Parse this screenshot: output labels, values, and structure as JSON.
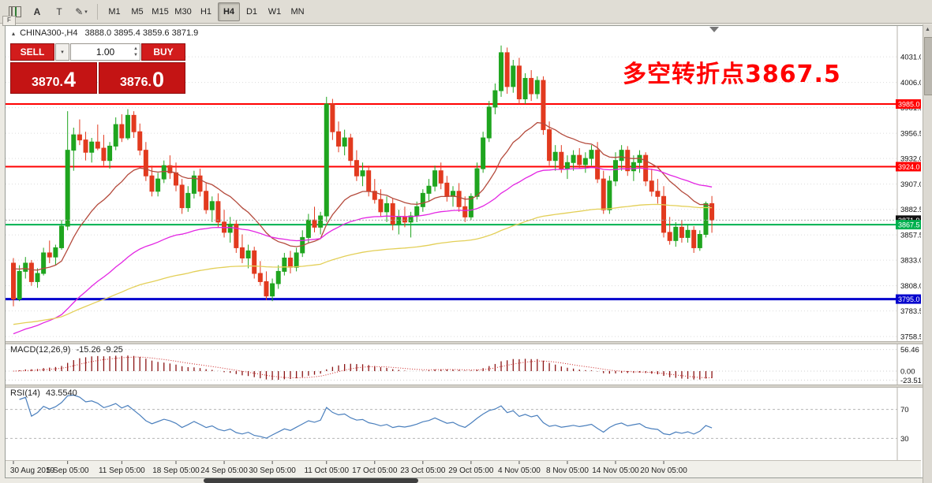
{
  "toolbar": {
    "cursor_label": "A",
    "text_label": "T",
    "pencil_glyph": "✎",
    "dropdown_glyph": "▾",
    "overflow_label": "F",
    "timeframes": [
      "M1",
      "M5",
      "M15",
      "M30",
      "H1",
      "H4",
      "D1",
      "W1",
      "MN"
    ],
    "active_timeframe": "H4"
  },
  "icons": {
    "collapse": "▴",
    "spin_up": "▲",
    "spin_down": "▼",
    "scroll_up": "▲"
  },
  "chart": {
    "header_symbol": "CHINA300-,H4",
    "header_ohlc": "3888.0 3895.4 3859.6 3871.9"
  },
  "trade_panel": {
    "sell_label": "SELL",
    "buy_label": "BUY",
    "volume": "1.00",
    "sell_price_main": "3870.",
    "sell_price_big": "4",
    "buy_price_main": "3876.",
    "buy_price_big": "0"
  },
  "annotation": {
    "text": "多空转折点3867.5",
    "color": "#ff0000"
  },
  "chart_data": {
    "type": "candlestick",
    "symbol": "CHINA300-",
    "timeframe": "H4",
    "ohlc_header": {
      "open": 3888.0,
      "high": 3895.4,
      "low": 3859.6,
      "close": 3871.9
    },
    "y_range": [
      3754,
      4061
    ],
    "y_ticks": [
      4031.0,
      4006.0,
      3981.5,
      3956.5,
      3932.0,
      3907.0,
      3882.5,
      3857.5,
      3833.0,
      3808.0,
      3783.5,
      3758.5
    ],
    "up_color": "#1fa51f",
    "down_color": "#e23a1f",
    "grid_color": "#dcdcdc",
    "hlines": [
      {
        "value": 3985.0,
        "color": "#ff0000",
        "width": 2,
        "label": "3985.0"
      },
      {
        "value": 3924.0,
        "color": "#ff0000",
        "width": 2,
        "label": "3924.0"
      },
      {
        "value": 3867.5,
        "color": "#00b14f",
        "width": 2,
        "label": "3867.5"
      },
      {
        "value": 3795.0,
        "color": "#0000cd",
        "width": 3,
        "label": "3795.0"
      }
    ],
    "current_price": {
      "value": 3871.9,
      "label": "3871.9",
      "tag_bg": "#111111"
    },
    "x_labels": [
      {
        "index": 0,
        "label": "30 Aug 2019"
      },
      {
        "index": 9,
        "label": "5 Sep 05:00"
      },
      {
        "index": 18,
        "label": "11 Sep 05:00"
      },
      {
        "index": 27,
        "label": "18 Sep 05:00"
      },
      {
        "index": 35,
        "label": "24 Sep 05:00"
      },
      {
        "index": 43,
        "label": "30 Sep 05:00"
      },
      {
        "index": 52,
        "label": "11 Oct 05:00"
      },
      {
        "index": 60,
        "label": "17 Oct 05:00"
      },
      {
        "index": 68,
        "label": "23 Oct 05:00"
      },
      {
        "index": 76,
        "label": "29 Oct 05:00"
      },
      {
        "index": 84,
        "label": "4 Nov 05:00"
      },
      {
        "index": 92,
        "label": "8 Nov 05:00"
      },
      {
        "index": 100,
        "label": "14 Nov 05:00"
      },
      {
        "index": 108,
        "label": "20 Nov 05:00"
      }
    ],
    "candles": [
      [
        3830,
        3835,
        3788,
        3795
      ],
      [
        3795,
        3828,
        3793,
        3822
      ],
      [
        3822,
        3836,
        3815,
        3830
      ],
      [
        3830,
        3833,
        3808,
        3812
      ],
      [
        3812,
        3825,
        3806,
        3820
      ],
      [
        3820,
        3845,
        3818,
        3840
      ],
      [
        3840,
        3852,
        3830,
        3836
      ],
      [
        3836,
        3848,
        3828,
        3845
      ],
      [
        3845,
        3872,
        3843,
        3866
      ],
      [
        3866,
        3978,
        3862,
        3940
      ],
      [
        3940,
        3962,
        3920,
        3955
      ],
      [
        3955,
        3970,
        3945,
        3950
      ],
      [
        3950,
        3958,
        3930,
        3938
      ],
      [
        3938,
        3952,
        3928,
        3948
      ],
      [
        3948,
        3965,
        3940,
        3942
      ],
      [
        3942,
        3955,
        3925,
        3930
      ],
      [
        3930,
        3948,
        3922,
        3944
      ],
      [
        3944,
        3972,
        3940,
        3965
      ],
      [
        3965,
        3975,
        3948,
        3952
      ],
      [
        3952,
        3980,
        3950,
        3974
      ],
      [
        3974,
        3978,
        3952,
        3958
      ],
      [
        3958,
        3966,
        3935,
        3940
      ],
      [
        3940,
        3948,
        3910,
        3915
      ],
      [
        3915,
        3925,
        3895,
        3900
      ],
      [
        3900,
        3918,
        3895,
        3912
      ],
      [
        3912,
        3930,
        3908,
        3925
      ],
      [
        3925,
        3935,
        3912,
        3918
      ],
      [
        3918,
        3928,
        3900,
        3906
      ],
      [
        3906,
        3912,
        3878,
        3884
      ],
      [
        3884,
        3905,
        3880,
        3898
      ],
      [
        3898,
        3920,
        3893,
        3915
      ],
      [
        3915,
        3922,
        3895,
        3900
      ],
      [
        3900,
        3908,
        3878,
        3882
      ],
      [
        3882,
        3895,
        3870,
        3890
      ],
      [
        3890,
        3898,
        3865,
        3870
      ],
      [
        3870,
        3882,
        3855,
        3860
      ],
      [
        3860,
        3875,
        3850,
        3868
      ],
      [
        3868,
        3872,
        3840,
        3845
      ],
      [
        3845,
        3858,
        3830,
        3835
      ],
      [
        3835,
        3848,
        3825,
        3842
      ],
      [
        3842,
        3846,
        3815,
        3820
      ],
      [
        3820,
        3832,
        3808,
        3812
      ],
      [
        3812,
        3822,
        3794,
        3798
      ],
      [
        3798,
        3815,
        3793,
        3810
      ],
      [
        3810,
        3828,
        3805,
        3822
      ],
      [
        3822,
        3840,
        3818,
        3835
      ],
      [
        3835,
        3842,
        3820,
        3826
      ],
      [
        3826,
        3845,
        3822,
        3840
      ],
      [
        3840,
        3862,
        3836,
        3855
      ],
      [
        3855,
        3878,
        3850,
        3872
      ],
      [
        3872,
        3885,
        3860,
        3865
      ],
      [
        3865,
        3880,
        3858,
        3876
      ],
      [
        3876,
        3992,
        3870,
        3985
      ],
      [
        3985,
        3990,
        3950,
        3958
      ],
      [
        3958,
        3968,
        3938,
        3944
      ],
      [
        3944,
        3960,
        3935,
        3952
      ],
      [
        3952,
        3956,
        3925,
        3930
      ],
      [
        3930,
        3940,
        3910,
        3915
      ],
      [
        3915,
        3928,
        3905,
        3920
      ],
      [
        3920,
        3925,
        3895,
        3900
      ],
      [
        3900,
        3912,
        3888,
        3892
      ],
      [
        3892,
        3902,
        3875,
        3880
      ],
      [
        3880,
        3895,
        3870,
        3888
      ],
      [
        3888,
        3893,
        3862,
        3868
      ],
      [
        3868,
        3882,
        3858,
        3875
      ],
      [
        3875,
        3885,
        3865,
        3870
      ],
      [
        3870,
        3880,
        3855,
        3876
      ],
      [
        3876,
        3890,
        3870,
        3885
      ],
      [
        3885,
        3902,
        3880,
        3898
      ],
      [
        3898,
        3912,
        3890,
        3905
      ],
      [
        3905,
        3925,
        3900,
        3920
      ],
      [
        3920,
        3928,
        3902,
        3908
      ],
      [
        3908,
        3915,
        3890,
        3895
      ],
      [
        3895,
        3905,
        3885,
        3900
      ],
      [
        3900,
        3908,
        3880,
        3885
      ],
      [
        3885,
        3895,
        3870,
        3875
      ],
      [
        3875,
        3898,
        3872,
        3895
      ],
      [
        3895,
        3928,
        3892,
        3922
      ],
      [
        3922,
        3958,
        3918,
        3952
      ],
      [
        3952,
        3988,
        3948,
        3982
      ],
      [
        3982,
        4005,
        3975,
        3998
      ],
      [
        3998,
        4042,
        3992,
        4035
      ],
      [
        4035,
        4040,
        3995,
        4002
      ],
      [
        4002,
        4028,
        3996,
        4022
      ],
      [
        4022,
        4030,
        3985,
        3990
      ],
      [
        3990,
        4015,
        3985,
        4010
      ],
      [
        4010,
        4018,
        3988,
        3995
      ],
      [
        3995,
        4012,
        3990,
        4008
      ],
      [
        4008,
        4012,
        3955,
        3960
      ],
      [
        3960,
        3968,
        3925,
        3930
      ],
      [
        3930,
        3945,
        3920,
        3938
      ],
      [
        3938,
        3945,
        3918,
        3922
      ],
      [
        3922,
        3935,
        3912,
        3928
      ],
      [
        3928,
        3940,
        3920,
        3935
      ],
      [
        3935,
        3942,
        3922,
        3926
      ],
      [
        3926,
        3938,
        3918,
        3932
      ],
      [
        3932,
        3945,
        3925,
        3940
      ],
      [
        3940,
        3948,
        3908,
        3912
      ],
      [
        3912,
        3920,
        3878,
        3882
      ],
      [
        3882,
        3915,
        3878,
        3910
      ],
      [
        3910,
        3938,
        3905,
        3930
      ],
      [
        3930,
        3945,
        3920,
        3940
      ],
      [
        3940,
        3944,
        3915,
        3920
      ],
      [
        3920,
        3935,
        3910,
        3928
      ],
      [
        3928,
        3940,
        3918,
        3935
      ],
      [
        3935,
        3938,
        3905,
        3910
      ],
      [
        3910,
        3922,
        3895,
        3900
      ],
      [
        3900,
        3912,
        3888,
        3895
      ],
      [
        3895,
        3905,
        3855,
        3860
      ],
      [
        3860,
        3875,
        3848,
        3852
      ],
      [
        3852,
        3870,
        3846,
        3865
      ],
      [
        3865,
        3872,
        3850,
        3855
      ],
      [
        3855,
        3868,
        3850,
        3862
      ],
      [
        3862,
        3866,
        3840,
        3845
      ],
      [
        3845,
        3862,
        3842,
        3858
      ],
      [
        3858,
        3890,
        3855,
        3888
      ],
      [
        3888,
        3895.4,
        3859.6,
        3871.9
      ]
    ],
    "moving_averages": [
      {
        "name": "ma-fast",
        "period": 18,
        "seed": 3828,
        "color": "#b44a3c"
      },
      {
        "name": "ma-medium",
        "period": 55,
        "seed": 3760,
        "color": "#e326e3"
      },
      {
        "name": "ma-slow",
        "period": 130,
        "seed": 3770,
        "color": "#e3cf57"
      }
    ],
    "macd": {
      "label": "MACD(12,26,9)",
      "values_text": "-15.26 -9.25",
      "fast": 12,
      "slow": 26,
      "signal": 9,
      "scale_labels": [
        56.46,
        0.0,
        -23.51
      ],
      "range": [
        -35,
        70
      ],
      "hist_color": "#8b1515",
      "signal_color": "#cc2222"
    },
    "rsi": {
      "label": "RSI(14)",
      "value_text": "43.5540",
      "period": 14,
      "levels": [
        70,
        30
      ],
      "range": [
        0,
        100
      ],
      "line_color": "#4a7fbd"
    }
  }
}
